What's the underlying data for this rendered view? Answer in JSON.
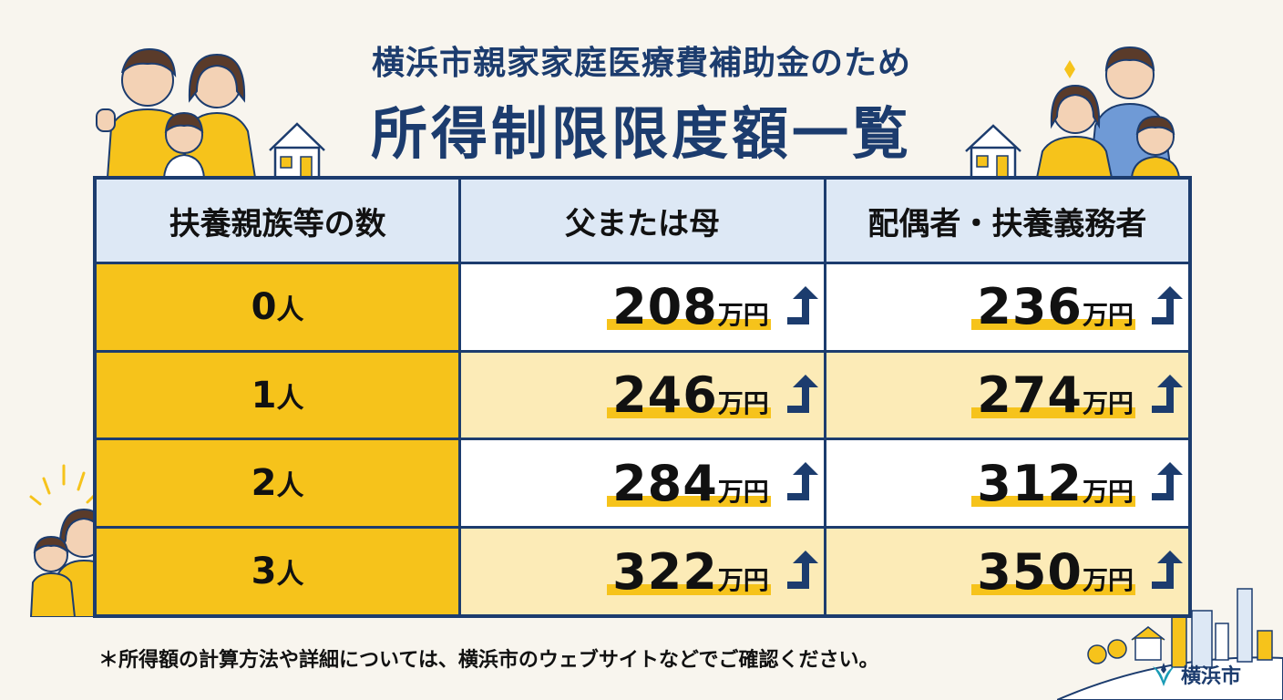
{
  "title": {
    "line1": "横浜市親家家庭医療費補助金のため",
    "line2": "所得制限限度額一覧"
  },
  "table": {
    "headers": [
      "扶養親族等の数",
      "父または母",
      "配偶者・扶養義務者"
    ],
    "rows": [
      {
        "count": "0",
        "count_unit": "人",
        "parent": "208",
        "spouse": "236"
      },
      {
        "count": "1",
        "count_unit": "人",
        "parent": "246",
        "spouse": "274"
      },
      {
        "count": "2",
        "count_unit": "人",
        "parent": "284",
        "spouse": "312"
      },
      {
        "count": "3",
        "count_unit": "人",
        "parent": "322",
        "spouse": "350"
      }
    ],
    "amount_unit": "万円",
    "amount_icon": "arrow-up-icon"
  },
  "footnote": "＊所得額の計算方法や詳細については、横浜市のウェブサイトなどでご確認ください。",
  "logo": {
    "text": "横浜市",
    "icon": "yokohama-emblem-icon"
  },
  "colors": {
    "navy": "#1c3c6e",
    "yellow": "#f6c31b",
    "header_blue": "#dde8f5",
    "light_yellow": "#fcebb7",
    "background": "#f8f5ee"
  }
}
